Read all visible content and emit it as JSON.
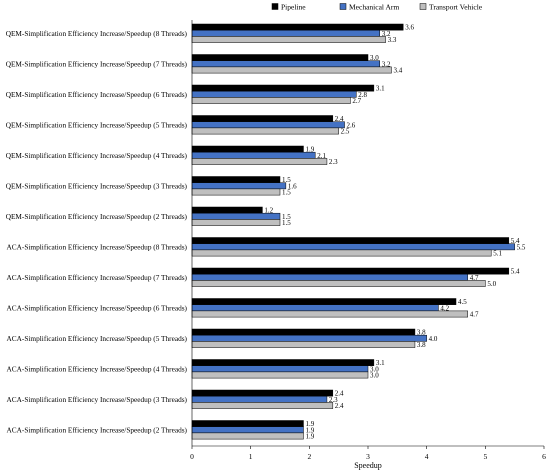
{
  "chart_data": {
    "type": "bar",
    "orientation": "horizontal",
    "categories": [
      "QEM-Simplification Efficiency Increase/Speedup (8 Threads)",
      "QEM-Simplification Efficiency Increase/Speedup (7 Threads)",
      "QEM-Simplification Efficiency Increase/Speedup (6 Threads)",
      "QEM-Simplification Efficiency Increase/Speedup (5 Threads)",
      "QEM-Simplification Efficiency Increase/Speedup (4 Threads)",
      "QEM-Simplification Efficiency Increase/Speedup (3 Threads)",
      "QEM-Simplification Efficiency Increase/Speedup (2 Threads)",
      "ACA-Simplification Efficiency Increase/Speedup (8 Threads)",
      "ACA-Simplification Efficiency Increase/Speedup (7 Threads)",
      "ACA-Simplification Efficiency Increase/Speedup (6 Threads)",
      "ACA-Simplification Efficiency Increase/Speedup (5 Threads)",
      "ACA-Simplification Efficiency Increase/Speedup (4 Threads)",
      "ACA-Simplification Efficiency Increase/Speedup (3 Threads)",
      "ACA-Simplification Efficiency Increase/Speedup (2 Threads)"
    ],
    "series": [
      {
        "name": "Pipeline",
        "color": "#000000",
        "values": [
          3.6,
          3.0,
          3.1,
          2.4,
          1.9,
          1.5,
          1.2,
          5.4,
          5.4,
          4.5,
          3.8,
          3.1,
          2.4,
          1.9
        ]
      },
      {
        "name": "Mechanical Arm",
        "color": "#4472c4",
        "values": [
          3.2,
          3.2,
          2.8,
          2.6,
          2.1,
          1.6,
          1.5,
          5.5,
          4.7,
          4.2,
          4.0,
          3.0,
          2.3,
          1.9
        ]
      },
      {
        "name": "Transport Vehicle",
        "color": "#bfbfbf",
        "values": [
          3.3,
          3.4,
          2.7,
          2.5,
          2.3,
          1.5,
          1.5,
          5.1,
          5.0,
          4.7,
          3.8,
          3.0,
          2.4,
          1.9
        ]
      }
    ],
    "xlabel": "Speedup",
    "ylabel": "",
    "xlim": [
      0,
      6
    ],
    "xticks": [
      0,
      1,
      2,
      3,
      4,
      5,
      6
    ],
    "grid": false,
    "legend_position": "top-right"
  }
}
